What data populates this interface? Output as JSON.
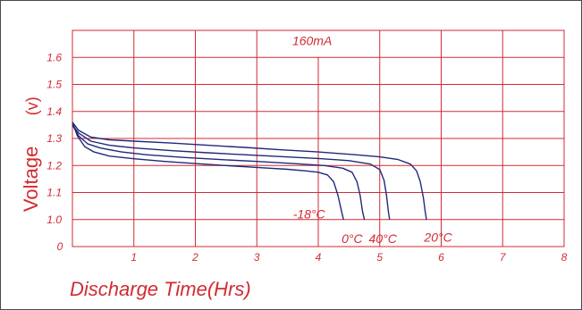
{
  "chart_data": {
    "type": "line",
    "title": "",
    "subtitle": "160mA",
    "xlabel": "Discharge Time(Hrs)",
    "ylabel": "Voltage",
    "ylabel_unit": "(v)",
    "xlim": [
      0,
      8
    ],
    "ylim": [
      0.9,
      1.7
    ],
    "x_ticks": [
      {
        "value": 1,
        "label": "1"
      },
      {
        "value": 2,
        "label": "2"
      },
      {
        "value": 3,
        "label": "3"
      },
      {
        "value": 4,
        "label": "4"
      },
      {
        "value": 5,
        "label": "5"
      },
      {
        "value": 6,
        "label": "6"
      },
      {
        "value": 7,
        "label": "7"
      },
      {
        "value": 8,
        "label": "8"
      }
    ],
    "y_ticks": [
      {
        "value": 1.0,
        "label": "1.0"
      },
      {
        "value": 1.1,
        "label": "1.1"
      },
      {
        "value": 1.2,
        "label": "1.2"
      },
      {
        "value": 1.3,
        "label": "1.3"
      },
      {
        "value": 1.4,
        "label": "1.4"
      },
      {
        "value": 1.5,
        "label": "1.5"
      },
      {
        "value": 1.6,
        "label": "1.6"
      }
    ],
    "origin_label": "0",
    "grid": true,
    "colors": {
      "grid": "#d22b33",
      "text": "#d22b33",
      "curve": "#1f2a78",
      "border": "#4a4a4a"
    },
    "series": [
      {
        "name": "-18°C",
        "x": [
          0,
          0.08,
          0.2,
          0.35,
          0.6,
          1.0,
          1.5,
          2.0,
          2.5,
          3.0,
          3.5,
          3.8,
          4.0,
          4.15,
          4.25,
          4.32,
          4.38,
          4.41
        ],
        "y": [
          1.36,
          1.31,
          1.27,
          1.25,
          1.235,
          1.225,
          1.215,
          1.207,
          1.2,
          1.193,
          1.186,
          1.18,
          1.175,
          1.165,
          1.14,
          1.09,
          1.03,
          1.0
        ]
      },
      {
        "name": "0°C",
        "x": [
          0,
          0.1,
          0.25,
          0.45,
          0.8,
          1.2,
          1.8,
          2.4,
          3.0,
          3.6,
          4.1,
          4.4,
          4.55,
          4.63,
          4.68,
          4.72,
          4.75
        ],
        "y": [
          1.35,
          1.31,
          1.28,
          1.265,
          1.25,
          1.24,
          1.23,
          1.222,
          1.215,
          1.207,
          1.2,
          1.19,
          1.175,
          1.14,
          1.09,
          1.03,
          1.0
        ]
      },
      {
        "name": "40°C",
        "x": [
          0,
          0.1,
          0.3,
          0.6,
          1.0,
          1.6,
          2.2,
          2.8,
          3.4,
          4.0,
          4.5,
          4.85,
          5.0,
          5.07,
          5.11,
          5.14,
          5.16
        ],
        "y": [
          1.35,
          1.32,
          1.29,
          1.275,
          1.265,
          1.255,
          1.247,
          1.24,
          1.233,
          1.226,
          1.218,
          1.205,
          1.185,
          1.145,
          1.09,
          1.03,
          1.0
        ]
      },
      {
        "name": "20°C",
        "x": [
          0,
          0.1,
          0.3,
          0.6,
          1.0,
          1.6,
          2.2,
          2.8,
          3.4,
          4.0,
          4.6,
          5.0,
          5.3,
          5.5,
          5.6,
          5.66,
          5.71,
          5.74,
          5.76
        ],
        "y": [
          1.36,
          1.33,
          1.305,
          1.295,
          1.29,
          1.283,
          1.275,
          1.267,
          1.258,
          1.25,
          1.24,
          1.232,
          1.222,
          1.205,
          1.18,
          1.14,
          1.08,
          1.03,
          1.0
        ]
      }
    ],
    "series_labels": [
      {
        "series": "-18°C",
        "text": "-18°C",
        "x": 3.85,
        "y": 1.02
      },
      {
        "series": "0°C",
        "text": "0°C",
        "x": 4.55,
        "y": 0.93
      },
      {
        "series": "40°C",
        "text": "40°C",
        "x": 5.05,
        "y": 0.93
      },
      {
        "series": "20°C",
        "text": "20°C",
        "x": 5.95,
        "y": 0.935
      }
    ]
  }
}
